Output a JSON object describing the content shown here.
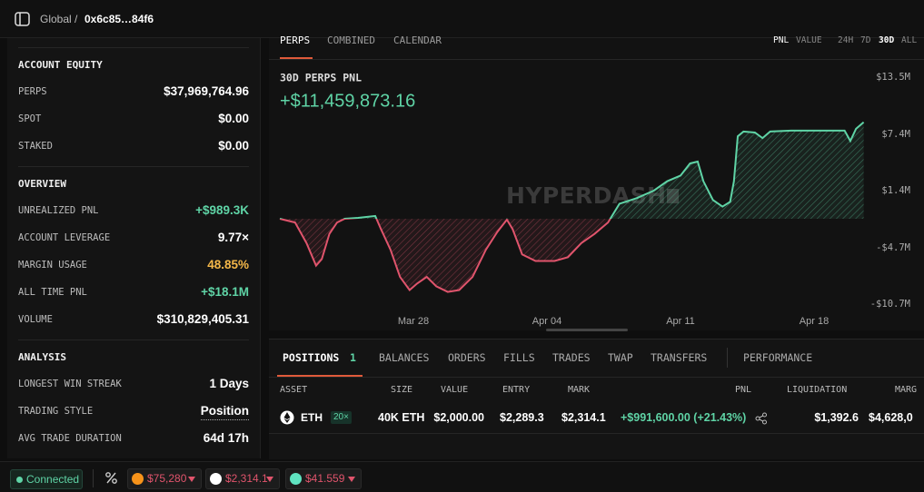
{
  "header": {
    "breadcrumb_root": "Global /",
    "address": "0x6c85…84f6"
  },
  "sidebar": {
    "sections": [
      {
        "title": "ACCOUNT EQUITY",
        "rows": [
          {
            "label": "PERPS",
            "value": "$37,969,764.96",
            "color": "#ffffff"
          },
          {
            "label": "SPOT",
            "value": "$0.00",
            "color": "#ffffff"
          },
          {
            "label": "STAKED",
            "value": "$0.00",
            "color": "#ffffff"
          }
        ]
      },
      {
        "title": "OVERVIEW",
        "rows": [
          {
            "label": "UNREALIZED PNL",
            "value": "+$989.3K",
            "color": "#5fd4a6"
          },
          {
            "label": "ACCOUNT LEVERAGE",
            "value": "9.77×",
            "color": "#ffffff"
          },
          {
            "label": "MARGIN USAGE",
            "value": "48.85%",
            "color": "#f5b849"
          },
          {
            "label": "ALL TIME PNL",
            "value": "+$18.1M",
            "color": "#5fd4a6"
          },
          {
            "label": "VOLUME",
            "value": "$310,829,405.31",
            "color": "#ffffff"
          }
        ]
      },
      {
        "title": "ANALYSIS",
        "rows": [
          {
            "label": "LONGEST WIN STREAK",
            "value": "1 Days",
            "color": "#ffffff"
          },
          {
            "label": "TRADING STYLE",
            "value": "Position",
            "color": "#ffffff"
          },
          {
            "label": "AVG TRADE DURATION",
            "value": "64d 17h",
            "color": "#ffffff"
          }
        ]
      }
    ]
  },
  "chart_tabs": [
    "PERPS",
    "COMBINED",
    "CALENDAR"
  ],
  "chart_modes": [
    "PNL",
    "VALUE"
  ],
  "chart_ranges": [
    "24H",
    "7D",
    "30D",
    "ALL"
  ],
  "chart_data": {
    "type": "line",
    "title": "30D PERPS PNL",
    "headline": "+$11,459,873.16",
    "watermark": "HYPERDASH",
    "x": [
      0,
      0.8,
      1.4,
      1.9,
      2.2,
      2.6,
      3.0,
      3.4,
      4.1,
      5.0,
      5.3,
      5.8,
      6.3,
      6.8,
      7.2,
      7.7,
      8.2,
      8.8,
      9.4,
      10.1,
      10.8,
      11.4,
      11.9,
      12.2,
      12.7,
      13.4,
      14.4,
      15.1,
      15.8,
      16.5,
      17.2,
      17.8,
      18.7,
      19.6,
      20.3,
      21.0,
      21.5,
      21.9,
      22.2,
      22.7,
      23.2,
      23.6,
      23.8,
      24.0,
      24.3,
      24.9,
      25.3,
      25.7,
      26.8,
      28.2,
      29.6,
      29.9,
      30.2,
      30.6
    ],
    "values": [
      -1.6,
      -2.0,
      -4.2,
      -6.6,
      -5.9,
      -3.2,
      -2.0,
      -1.6,
      -1.5,
      -1.3,
      -2.7,
      -4.9,
      -7.8,
      -9.2,
      -8.5,
      -7.8,
      -8.8,
      -9.4,
      -9.2,
      -7.8,
      -4.9,
      -3.0,
      -1.7,
      -2.7,
      -5.4,
      -6.1,
      -6.1,
      -5.7,
      -4.2,
      -3.2,
      -2.0,
      0.0,
      0.6,
      1.4,
      2.4,
      3.0,
      4.3,
      4.5,
      2.4,
      0.4,
      -0.3,
      0.2,
      2.4,
      7.2,
      7.7,
      7.6,
      7.0,
      7.7,
      7.8,
      7.8,
      7.8,
      6.7,
      8.0,
      8.7
    ],
    "color_up": "#5fd4a6",
    "color_down": "#e0546c",
    "xlim": [
      0,
      30.6
    ],
    "xticks": [
      {
        "value": 7,
        "label": "Mar 28"
      },
      {
        "value": 14,
        "label": "Apr 04"
      },
      {
        "value": 21,
        "label": "Apr 11"
      },
      {
        "value": 28,
        "label": "Apr 18"
      }
    ],
    "ylim": [
      -10.7,
      13.5
    ],
    "yticks": [
      {
        "value": 13.5,
        "label": "$13.5M"
      },
      {
        "value": 7.4,
        "label": "$7.4M"
      },
      {
        "value": 1.4,
        "label": "$1.4M"
      },
      {
        "value": -4.7,
        "label": "-$4.7M"
      },
      {
        "value": -10.7,
        "label": "-$10.7M"
      }
    ],
    "grid": false
  },
  "positions": {
    "tabs": [
      "POSITIONS",
      "BALANCES",
      "ORDERS",
      "FILLS",
      "TRADES",
      "TWAP",
      "TRANSFERS",
      "PERFORMANCE"
    ],
    "positions_count": "1",
    "columns": [
      "ASSET",
      "SIZE",
      "VALUE",
      "ENTRY",
      "MARK",
      "PNL",
      "LIQUIDATION",
      "MARG"
    ],
    "rows": [
      {
        "asset": "ETH",
        "leverage": "20×",
        "size": "40K ETH",
        "value": "$2,000.00",
        "entry": "$2,289.3",
        "mark": "$2,314.1",
        "pnl": "+$991,600.00 (+21.43%)",
        "liquidation": "$1,392.6",
        "margin": "$4,628,0"
      }
    ]
  },
  "footer": {
    "status": "Connected",
    "tickers": [
      {
        "price": "$75,280",
        "color": "#f7931a"
      },
      {
        "price": "$2,314.1",
        "color": "#ffffff"
      },
      {
        "price": "$41.559",
        "color": "#5fe3c0"
      }
    ]
  }
}
